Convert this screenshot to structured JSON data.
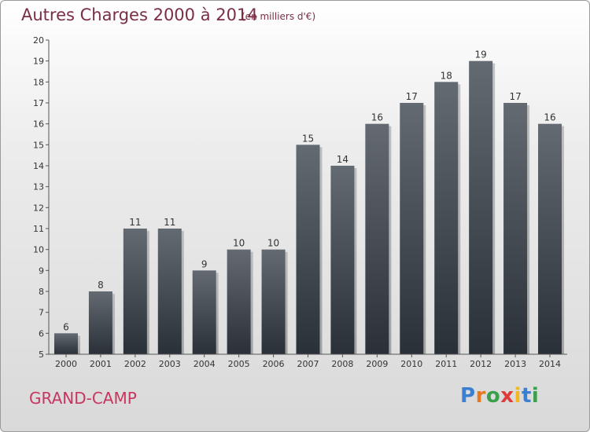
{
  "header": {
    "title": "Autres Charges 2000 à 2014",
    "subtitle": "(en milliers d'€)"
  },
  "footer": {
    "city": "GRAND-CAMP",
    "logo_text": "Proxiti"
  },
  "colors": {
    "title": "#7a2e44",
    "city": "#c7365f",
    "bar_top": "#636a72",
    "bar_bottom": "#2a3038"
  },
  "chart_data": {
    "type": "bar",
    "categories": [
      "2000",
      "2001",
      "2002",
      "2003",
      "2004",
      "2005",
      "2006",
      "2007",
      "2008",
      "2009",
      "2010",
      "2011",
      "2012",
      "2013",
      "2014"
    ],
    "values": [
      6,
      8,
      11,
      11,
      9,
      10,
      10,
      15,
      14,
      16,
      17,
      18,
      19,
      17,
      16
    ],
    "title": "Autres Charges 2000 à 2014",
    "xlabel": "",
    "ylabel": "",
    "ylim": [
      5,
      20
    ],
    "yticks": [
      5,
      6,
      7,
      8,
      9,
      10,
      11,
      12,
      13,
      14,
      15,
      16,
      17,
      18,
      19,
      20
    ],
    "grid": false,
    "data_labels": true
  }
}
